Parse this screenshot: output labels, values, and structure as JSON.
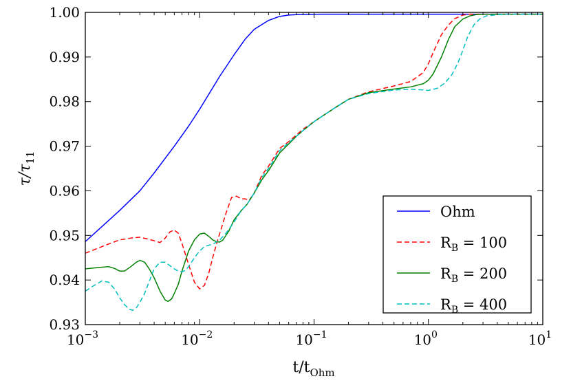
{
  "chart_data": {
    "type": "line",
    "xlabel": "t/t_Ohm",
    "xlabel_main": "t/t",
    "xlabel_sub": "Ohm",
    "ylabel": "τ/τ_11",
    "ylabel_main": "τ/τ",
    "ylabel_sub": "11",
    "xscale": "log",
    "xlim": [
      0.001,
      10
    ],
    "ylim": [
      0.93,
      1.0
    ],
    "grid": false,
    "legend_position": "bottom-right",
    "x_ticks": [
      {
        "base": "10",
        "exp": "−3",
        "value": 0.001
      },
      {
        "base": "10",
        "exp": "−2",
        "value": 0.01
      },
      {
        "base": "10",
        "exp": "−1",
        "value": 0.1
      },
      {
        "base": "10",
        "exp": "0",
        "value": 1
      },
      {
        "base": "10",
        "exp": "1",
        "value": 10
      }
    ],
    "y_ticks": [
      "0.93",
      "0.94",
      "0.95",
      "0.96",
      "0.97",
      "0.98",
      "0.99",
      "1.00"
    ],
    "series": [
      {
        "name": "Ohm",
        "color": "#0000ff",
        "dash": "solid",
        "x": [
          0.001,
          0.0015,
          0.002,
          0.003,
          0.004,
          0.005,
          0.006,
          0.008,
          0.01,
          0.015,
          0.02,
          0.025,
          0.03,
          0.04,
          0.05,
          0.06,
          0.07,
          0.08,
          0.1,
          0.12,
          0.15,
          0.2,
          0.3,
          0.5,
          1,
          2,
          5,
          10
        ],
        "y": [
          0.9486,
          0.9527,
          0.9556,
          0.96,
          0.964,
          0.9673,
          0.97,
          0.9745,
          0.9783,
          0.9857,
          0.9905,
          0.994,
          0.9962,
          0.9982,
          0.9991,
          0.9994,
          0.9995,
          0.99955,
          0.99958,
          0.9996,
          0.9996,
          0.9996,
          0.9996,
          0.9996,
          0.9996,
          0.9996,
          0.9996,
          0.9996
        ]
      },
      {
        "name": "R_B = 100",
        "label_main": "R",
        "label_sub": "B",
        "label_rest": " = 100",
        "color": "#ff0000",
        "dash": "dashed",
        "x": [
          0.001,
          0.0015,
          0.002,
          0.0025,
          0.003,
          0.0035,
          0.004,
          0.0045,
          0.005,
          0.0055,
          0.006,
          0.0065,
          0.007,
          0.008,
          0.009,
          0.01,
          0.011,
          0.012,
          0.013,
          0.014,
          0.015,
          0.017,
          0.019,
          0.021,
          0.023,
          0.025,
          0.027,
          0.03,
          0.035,
          0.04,
          0.05,
          0.06,
          0.07,
          0.08,
          0.1,
          0.15,
          0.2,
          0.3,
          0.5,
          0.7,
          0.9,
          1.0,
          1.1,
          1.3,
          1.5,
          1.7,
          2.0,
          2.3,
          3.0,
          5.0,
          10
        ],
        "y": [
          0.946,
          0.9478,
          0.949,
          0.9494,
          0.9496,
          0.9492,
          0.9488,
          0.9484,
          0.9494,
          0.9508,
          0.9512,
          0.9505,
          0.9482,
          0.9435,
          0.9395,
          0.938,
          0.9388,
          0.9415,
          0.945,
          0.948,
          0.9505,
          0.955,
          0.9585,
          0.9588,
          0.9582,
          0.9582,
          0.9578,
          0.9595,
          0.9635,
          0.9655,
          0.9695,
          0.971,
          0.9725,
          0.9738,
          0.9755,
          0.9785,
          0.9805,
          0.9822,
          0.9835,
          0.9845,
          0.9865,
          0.9885,
          0.991,
          0.995,
          0.9972,
          0.9986,
          0.9994,
          0.9996,
          0.9996,
          0.9996,
          0.9996
        ]
      },
      {
        "name": "R_B = 200",
        "label_main": "R",
        "label_sub": "B",
        "label_rest": " = 200",
        "color": "#008000",
        "dash": "solid",
        "x": [
          0.001,
          0.0013,
          0.0016,
          0.0018,
          0.002,
          0.0022,
          0.0025,
          0.0028,
          0.003,
          0.0033,
          0.0036,
          0.004,
          0.0045,
          0.005,
          0.0053,
          0.0057,
          0.006,
          0.0065,
          0.007,
          0.008,
          0.009,
          0.01,
          0.011,
          0.012,
          0.013,
          0.014,
          0.015,
          0.016,
          0.018,
          0.02,
          0.023,
          0.026,
          0.03,
          0.035,
          0.04,
          0.05,
          0.06,
          0.07,
          0.08,
          0.1,
          0.15,
          0.2,
          0.3,
          0.5,
          0.7,
          0.9,
          1.0,
          1.1,
          1.3,
          1.5,
          1.7,
          2.0,
          2.3,
          2.6,
          3.0,
          5.0,
          10
        ],
        "y": [
          0.9425,
          0.9428,
          0.943,
          0.9426,
          0.942,
          0.942,
          0.943,
          0.944,
          0.9444,
          0.944,
          0.9426,
          0.9405,
          0.9375,
          0.9355,
          0.9352,
          0.9358,
          0.937,
          0.939,
          0.942,
          0.9465,
          0.949,
          0.9503,
          0.9505,
          0.9498,
          0.949,
          0.9486,
          0.9485,
          0.949,
          0.951,
          0.9535,
          0.9555,
          0.957,
          0.9595,
          0.9625,
          0.9645,
          0.9685,
          0.9705,
          0.9722,
          0.9735,
          0.9755,
          0.9785,
          0.9805,
          0.982,
          0.9828,
          0.9833,
          0.984,
          0.9848,
          0.9862,
          0.99,
          0.994,
          0.9968,
          0.9985,
          0.9992,
          0.9995,
          0.9996,
          0.9996,
          0.9996
        ]
      },
      {
        "name": "R_B = 400",
        "label_main": "R",
        "label_sub": "B",
        "label_rest": " = 400",
        "color": "#00bfbf",
        "dash": "dashed",
        "x": [
          0.001,
          0.0012,
          0.0014,
          0.0016,
          0.0018,
          0.002,
          0.0022,
          0.0024,
          0.0026,
          0.0028,
          0.003,
          0.0033,
          0.0036,
          0.004,
          0.0045,
          0.005,
          0.0055,
          0.006,
          0.0065,
          0.007,
          0.0075,
          0.008,
          0.009,
          0.01,
          0.011,
          0.012,
          0.013,
          0.015,
          0.017,
          0.02,
          0.023,
          0.026,
          0.03,
          0.035,
          0.04,
          0.05,
          0.06,
          0.07,
          0.08,
          0.1,
          0.15,
          0.2,
          0.3,
          0.5,
          0.7,
          0.9,
          1.0,
          1.2,
          1.4,
          1.6,
          1.8,
          2.0,
          2.2,
          2.5,
          2.8,
          3.2,
          4.0,
          5.0,
          10
        ],
        "y": [
          0.9375,
          0.9388,
          0.9398,
          0.9395,
          0.938,
          0.936,
          0.9345,
          0.9335,
          0.9332,
          0.9338,
          0.935,
          0.937,
          0.9395,
          0.9425,
          0.944,
          0.944,
          0.9432,
          0.9425,
          0.942,
          0.9418,
          0.9422,
          0.943,
          0.945,
          0.9465,
          0.9475,
          0.9478,
          0.948,
          0.949,
          0.9505,
          0.953,
          0.9555,
          0.957,
          0.9595,
          0.963,
          0.965,
          0.969,
          0.9708,
          0.9722,
          0.9735,
          0.9755,
          0.9785,
          0.9805,
          0.9818,
          0.9826,
          0.9828,
          0.9826,
          0.9825,
          0.983,
          0.9842,
          0.986,
          0.9885,
          0.9915,
          0.9945,
          0.9972,
          0.9985,
          0.9992,
          0.9995,
          0.9996,
          0.9996
        ]
      }
    ]
  }
}
